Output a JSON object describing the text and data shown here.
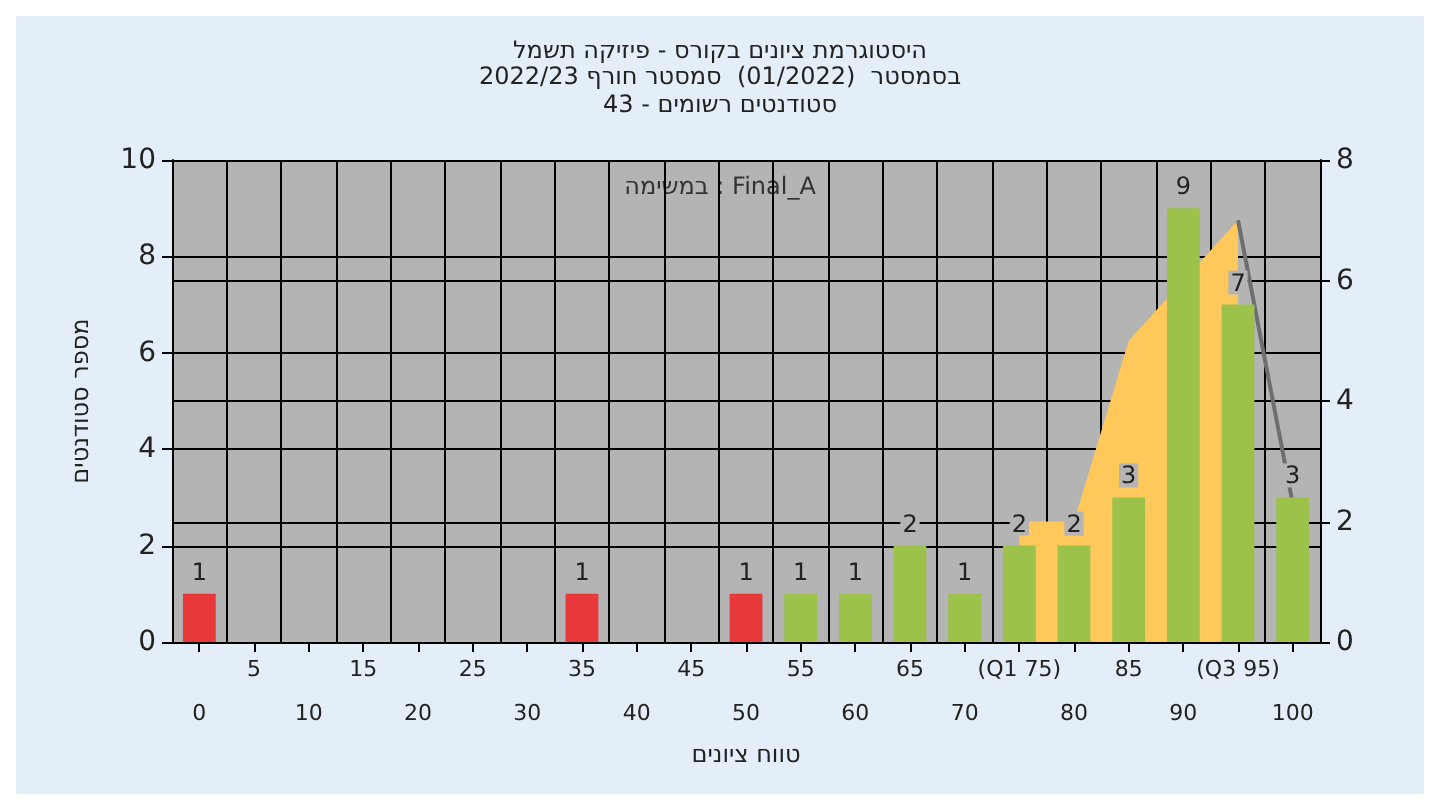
{
  "chart_data": {
    "type": "bar",
    "title": "היסטוגרמת ציונים בקורס - פיזיקה תשמל",
    "subtitle": "בסמסטר  (01/2022)  סמסטר חורף 2022/23\nסטודנטים רשומים - 43",
    "xlabel": "טווח ציונים",
    "ylabel": "מספר סטודנטים",
    "annotations": [
      "במשימה : Final_A"
    ],
    "categories": [
      "0",
      "5",
      "10",
      "15",
      "20",
      "25",
      "30",
      "35",
      "40",
      "45",
      "50",
      "55",
      "60",
      "65",
      "70",
      "(Q1 75)",
      "80",
      "85",
      "90",
      "(Q3 95)",
      "100"
    ],
    "series": [
      {
        "type": "area",
        "axis": "y2",
        "color": "#ffc85a",
        "values": [
          null,
          null,
          null,
          null,
          null,
          null,
          null,
          null,
          null,
          null,
          null,
          null,
          null,
          null,
          null,
          2,
          2,
          5,
          null,
          7,
          null
        ]
      },
      {
        "type": "line",
        "axis": "y2",
        "color": "#6e6e6e",
        "marker": "none",
        "values": [
          null,
          null,
          null,
          null,
          null,
          null,
          null,
          null,
          null,
          null,
          null,
          null,
          null,
          null,
          null,
          null,
          null,
          null,
          null,
          7,
          2.3
        ]
      },
      {
        "values": [
          1,
          0,
          0,
          0,
          0,
          0,
          0,
          1,
          0,
          0,
          1,
          1,
          1,
          2,
          1,
          2,
          2,
          3,
          9,
          7,
          3
        ],
        "value_labels": [
          "1",
          null,
          null,
          null,
          null,
          null,
          null,
          "1",
          null,
          null,
          "1",
          "1",
          "1",
          "2",
          "1",
          "2",
          "2",
          "3",
          "9",
          "7",
          "3"
        ],
        "colors": [
          "#e8383a",
          "#b0b0b0",
          "#b0b0b0",
          "#b0b0b0",
          "#b0b0b0",
          "#b0b0b0",
          "#b0b0b0",
          "#e8383a",
          "#b0b0b0",
          "#b0b0b0",
          "#e8383a",
          "#9cc24c",
          "#9cc24c",
          "#9cc24c",
          "#9cc24c",
          "#9cc24c",
          "#9cc24c",
          "#9cc24c",
          "#9cc24c",
          "#9cc24c",
          "#9cc24c"
        ]
      }
    ],
    "ylim": [
      0,
      10
    ],
    "yticks": [
      0,
      2,
      4,
      6,
      8,
      10
    ],
    "y2lim": [
      0,
      8
    ],
    "y2ticks": [
      0,
      2,
      4,
      6,
      8
    ],
    "grid": true
  }
}
